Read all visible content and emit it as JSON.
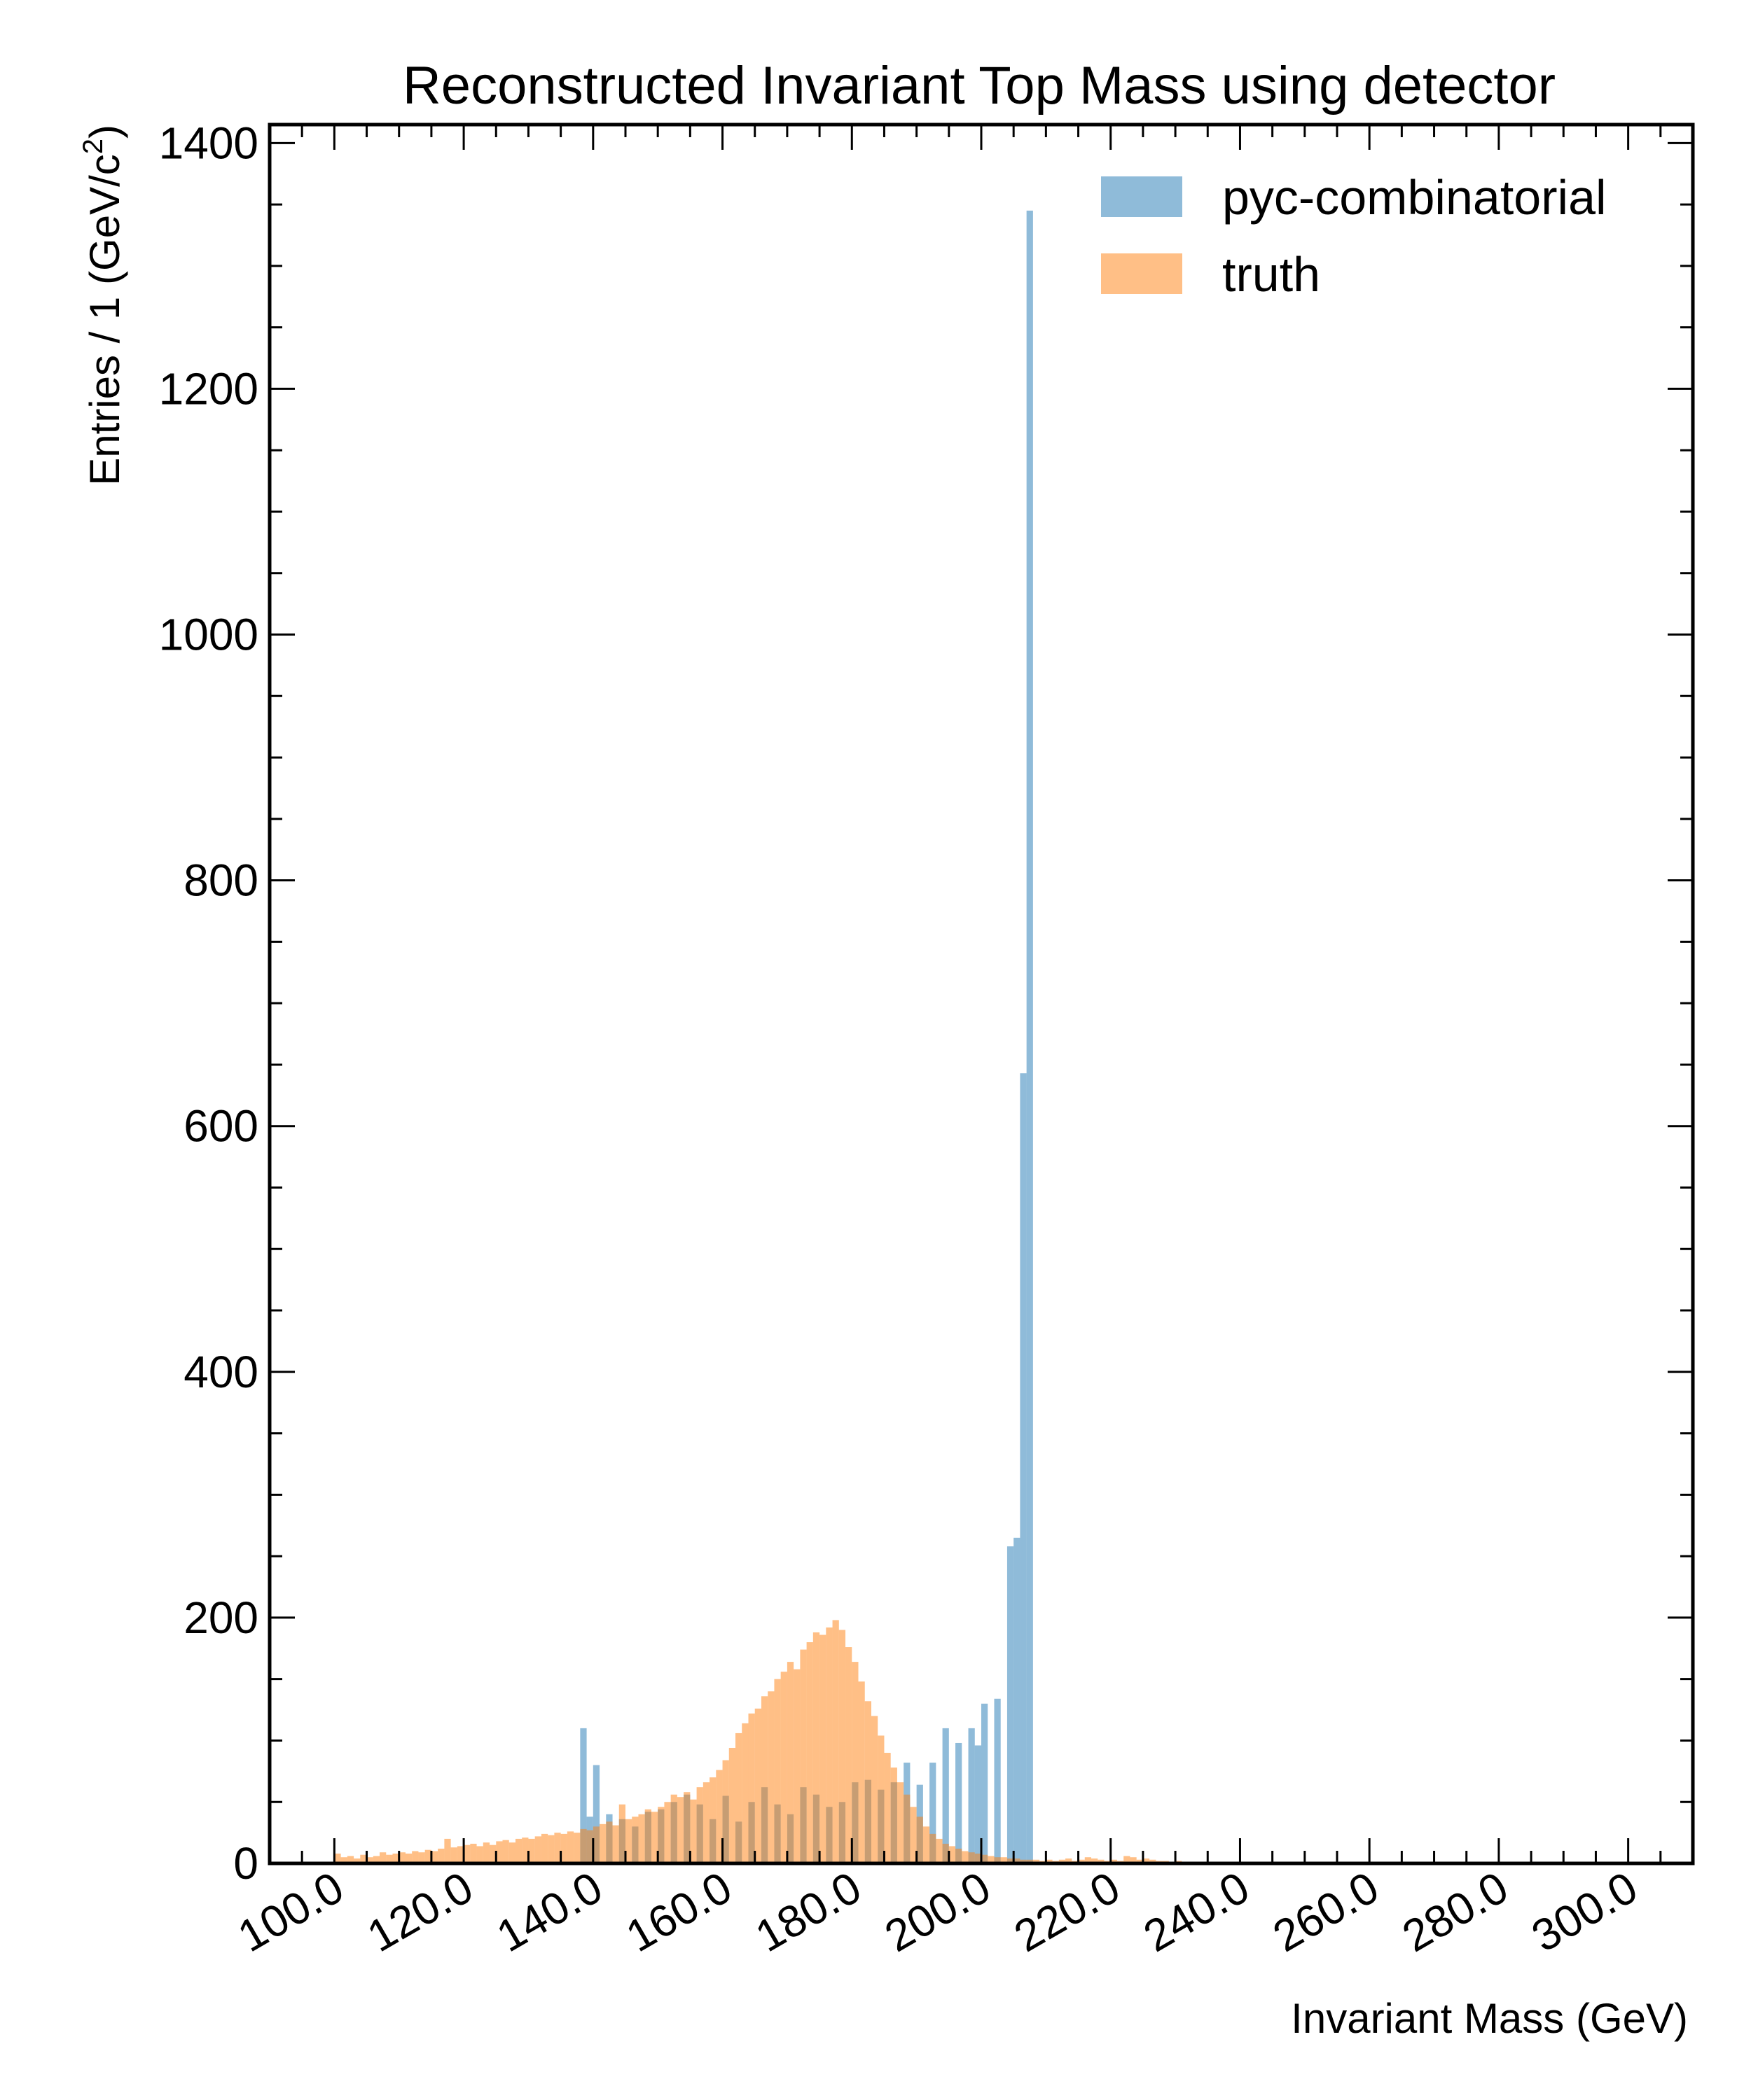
{
  "chart_data": {
    "type": "bar",
    "title": "Reconstructed Invariant Top Mass using detector",
    "xlabel": "Invariant Mass (GeV)",
    "ylabel_main": "Entries  / 1 (GeV/c",
    "ylabel_sup": "2",
    "ylabel_close": ")",
    "xlim": [
      90,
      310
    ],
    "ylim": [
      0,
      1415
    ],
    "x_ticks": [
      "100.0",
      "120.0",
      "140.0",
      "160.0",
      "180.0",
      "200.0",
      "220.0",
      "240.0",
      "260.0",
      "280.0",
      "300.0"
    ],
    "y_ticks": [
      0,
      200,
      400,
      600,
      800,
      1000,
      1200,
      1400
    ],
    "bin_width": 1,
    "legend_position": "top-right",
    "series": [
      {
        "name": "pyc-combinatorial",
        "color": "#1f77b4",
        "x": [
          138,
          139,
          140,
          142,
          144,
          146,
          148,
          150,
          152,
          154,
          156,
          158,
          160,
          162,
          164,
          166,
          168,
          170,
          172,
          174,
          176,
          178,
          180,
          182,
          184,
          186,
          188,
          190,
          192,
          194,
          196,
          198,
          199,
          200,
          202,
          204,
          205,
          206,
          207
        ],
        "values": [
          110,
          38,
          80,
          40,
          36,
          30,
          42,
          44,
          50,
          56,
          48,
          36,
          55,
          34,
          50,
          62,
          48,
          40,
          62,
          56,
          46,
          50,
          66,
          68,
          60,
          66,
          82,
          64,
          82,
          110,
          98,
          110,
          96,
          130,
          134,
          258,
          265,
          643,
          1345
        ]
      },
      {
        "name": "truth",
        "color": "#ff7f0e",
        "x": [
          100,
          101,
          102,
          103,
          104,
          105,
          106,
          107,
          108,
          109,
          110,
          111,
          112,
          113,
          114,
          115,
          116,
          117,
          118,
          119,
          120,
          121,
          122,
          123,
          124,
          125,
          126,
          127,
          128,
          129,
          130,
          131,
          132,
          133,
          134,
          135,
          136,
          137,
          138,
          139,
          140,
          141,
          142,
          143,
          144,
          145,
          146,
          147,
          148,
          149,
          150,
          151,
          152,
          153,
          154,
          155,
          156,
          157,
          158,
          159,
          160,
          161,
          162,
          163,
          164,
          165,
          166,
          167,
          168,
          169,
          170,
          171,
          172,
          173,
          174,
          175,
          176,
          177,
          178,
          179,
          180,
          181,
          182,
          183,
          184,
          185,
          186,
          187,
          188,
          189,
          190,
          191,
          192,
          193,
          194,
          195,
          196,
          197,
          198,
          199,
          200,
          201,
          202,
          203,
          204,
          205,
          206,
          207,
          208,
          209,
          210,
          211,
          212,
          213,
          214,
          215,
          216,
          217,
          218,
          219,
          220,
          221,
          222,
          223,
          224,
          225,
          226,
          227,
          228,
          229,
          230,
          232,
          234,
          236,
          238,
          240,
          243,
          246,
          250,
          255,
          260,
          265,
          270,
          275,
          280,
          285,
          290,
          295,
          300,
          305
        ],
        "values": [
          8,
          5,
          6,
          4,
          7,
          5,
          6,
          9,
          7,
          8,
          9,
          8,
          10,
          9,
          11,
          10,
          12,
          20,
          13,
          14,
          15,
          16,
          14,
          17,
          15,
          18,
          19,
          17,
          20,
          21,
          20,
          22,
          24,
          23,
          25,
          24,
          26,
          25,
          28,
          27,
          30,
          32,
          34,
          31,
          48,
          36,
          38,
          40,
          44,
          42,
          46,
          50,
          56,
          54,
          58,
          52,
          62,
          66,
          70,
          76,
          84,
          94,
          106,
          114,
          122,
          126,
          136,
          140,
          150,
          156,
          164,
          158,
          174,
          180,
          188,
          186,
          192,
          198,
          190,
          176,
          164,
          148,
          132,
          120,
          104,
          90,
          78,
          66,
          56,
          46,
          38,
          30,
          24,
          20,
          16,
          14,
          12,
          10,
          9,
          8,
          7,
          6,
          5,
          5,
          4,
          4,
          3,
          3,
          3,
          2,
          3,
          2,
          3,
          4,
          2,
          3,
          5,
          4,
          3,
          2,
          3,
          2,
          6,
          5,
          3,
          4,
          3,
          2,
          2,
          1,
          2,
          1,
          1,
          1,
          1,
          1,
          1,
          1,
          1,
          1,
          1,
          1,
          1,
          1,
          1,
          1,
          1,
          1,
          1,
          1
        ]
      }
    ]
  }
}
